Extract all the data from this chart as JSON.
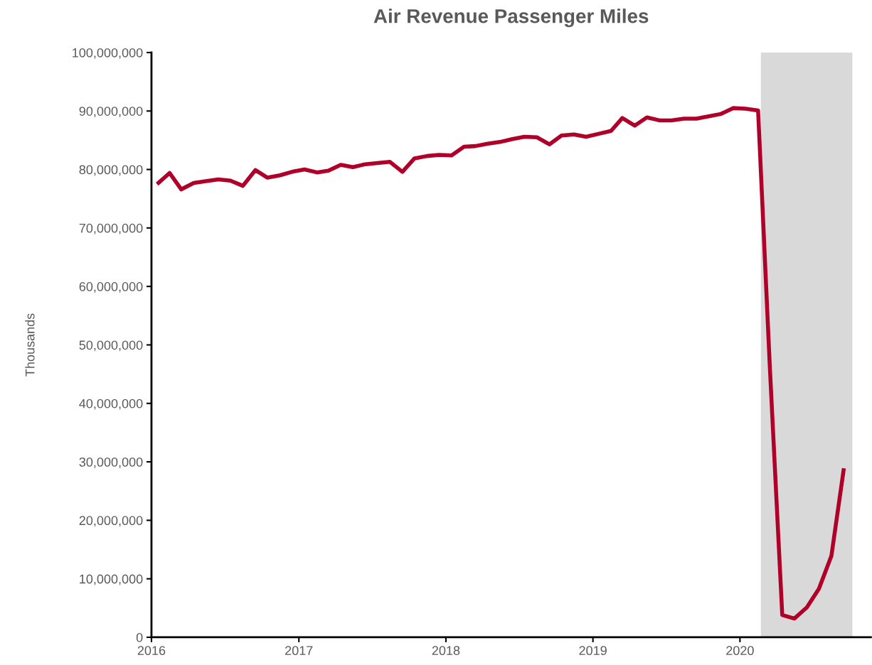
{
  "chart_data": {
    "type": "line",
    "title": "Air Revenue Passenger Miles",
    "ylabel": "Thousands",
    "x": [
      "2016-01-15",
      "2016-02-15",
      "2016-03-15",
      "2016-04-15",
      "2016-05-15",
      "2016-06-15",
      "2016-07-15",
      "2016-08-15",
      "2016-09-15",
      "2016-10-15",
      "2016-11-15",
      "2016-12-15",
      "2017-01-15",
      "2017-02-15",
      "2017-03-15",
      "2017-04-15",
      "2017-05-15",
      "2017-06-15",
      "2017-07-15",
      "2017-08-15",
      "2017-09-15",
      "2017-10-15",
      "2017-11-15",
      "2017-12-15",
      "2018-01-15",
      "2018-02-15",
      "2018-03-15",
      "2018-04-15",
      "2018-05-15",
      "2018-06-15",
      "2018-07-15",
      "2018-08-15",
      "2018-09-15",
      "2018-10-15",
      "2018-11-15",
      "2018-12-15",
      "2019-01-15",
      "2019-02-15",
      "2019-03-15",
      "2019-04-15",
      "2019-05-15",
      "2019-06-15",
      "2019-07-15",
      "2019-08-15",
      "2019-09-15",
      "2019-10-15",
      "2019-11-15",
      "2019-12-15",
      "2020-01-15",
      "2020-02-15",
      "2020-03-15",
      "2020-04-15",
      "2020-05-15",
      "2020-06-15",
      "2020-07-15",
      "2020-08-15",
      "2020-09-15"
    ],
    "series": [
      {
        "color": "#b00029",
        "values": [
          77500000,
          79400000,
          76600000,
          77700000,
          78000000,
          78300000,
          78100000,
          77200000,
          79900000,
          78600000,
          79000000,
          79600000,
          80000000,
          79500000,
          79800000,
          80800000,
          80400000,
          80900000,
          81100000,
          81300000,
          79600000,
          81900000,
          82300000,
          82500000,
          82400000,
          83900000,
          84000000,
          84400000,
          84700000,
          85200000,
          85600000,
          85500000,
          84300000,
          85800000,
          86000000,
          85600000,
          86100000,
          86600000,
          88800000,
          87500000,
          88900000,
          88400000,
          88400000,
          88700000,
          88700000,
          89100000,
          89500000,
          90500000,
          90400000,
          90100000,
          46500000,
          3800000,
          3200000,
          5100000,
          8300000,
          13900000,
          28900000
        ]
      }
    ],
    "xlim": [
      "2016-01-01",
      "2020-11-21"
    ],
    "xticks": [
      {
        "value": "2016-01-01",
        "label": "2016"
      },
      {
        "value": "2017-01-01",
        "label": "2017"
      },
      {
        "value": "2018-01-01",
        "label": "2018"
      },
      {
        "value": "2019-01-01",
        "label": "2019"
      },
      {
        "value": "2020-01-01",
        "label": "2020"
      }
    ],
    "ylim": [
      0,
      100000000
    ],
    "yticks": [
      {
        "value": 0,
        "label": "0"
      },
      {
        "value": 10000000,
        "label": "10,000,000"
      },
      {
        "value": 20000000,
        "label": "20,000,000"
      },
      {
        "value": 30000000,
        "label": "30,000,000"
      },
      {
        "value": 40000000,
        "label": "40,000,000"
      },
      {
        "value": 50000000,
        "label": "50,000,000"
      },
      {
        "value": 60000000,
        "label": "60,000,000"
      },
      {
        "value": 70000000,
        "label": "70,000,000"
      },
      {
        "value": 80000000,
        "label": "80,000,000"
      },
      {
        "value": 90000000,
        "label": "90,000,000"
      },
      {
        "value": 100000000,
        "label": "100,000,000"
      }
    ],
    "bands": [
      {
        "axis": "x",
        "from": "2020-02-22",
        "to": "2020-10-06",
        "color": "#d9d9d9"
      }
    ],
    "marker": "none",
    "line_style": "solid"
  }
}
